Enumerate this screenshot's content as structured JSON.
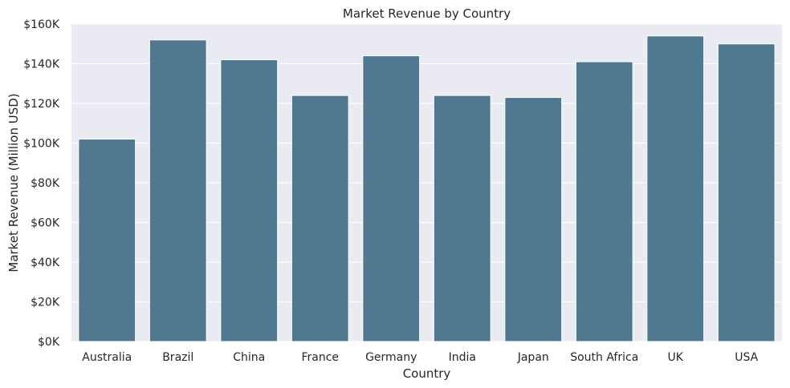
{
  "chart_data": {
    "type": "bar",
    "title": "Market Revenue by Country",
    "xlabel": "Country",
    "ylabel": "Market Revenue (Million USD)",
    "categories": [
      "Australia",
      "Brazil",
      "China",
      "France",
      "Germany",
      "India",
      "Japan",
      "South Africa",
      "UK",
      "USA"
    ],
    "values": [
      102,
      152,
      142,
      124,
      144,
      124,
      123,
      141,
      154,
      150
    ],
    "value_unit_note": "thousands (tick labels shown as $NK)",
    "ylim": [
      0,
      160
    ],
    "yticks": [
      0,
      20,
      40,
      60,
      80,
      100,
      120,
      140,
      160
    ],
    "ytick_labels": [
      "$0K",
      "$20K",
      "$40K",
      "$60K",
      "$80K",
      "$100K",
      "$120K",
      "$140K",
      "$160K"
    ],
    "grid": true,
    "colors": {
      "bar": "#517891",
      "plot_background": "#eaeaf2",
      "grid": "#ffffff",
      "text": "#262626"
    }
  }
}
